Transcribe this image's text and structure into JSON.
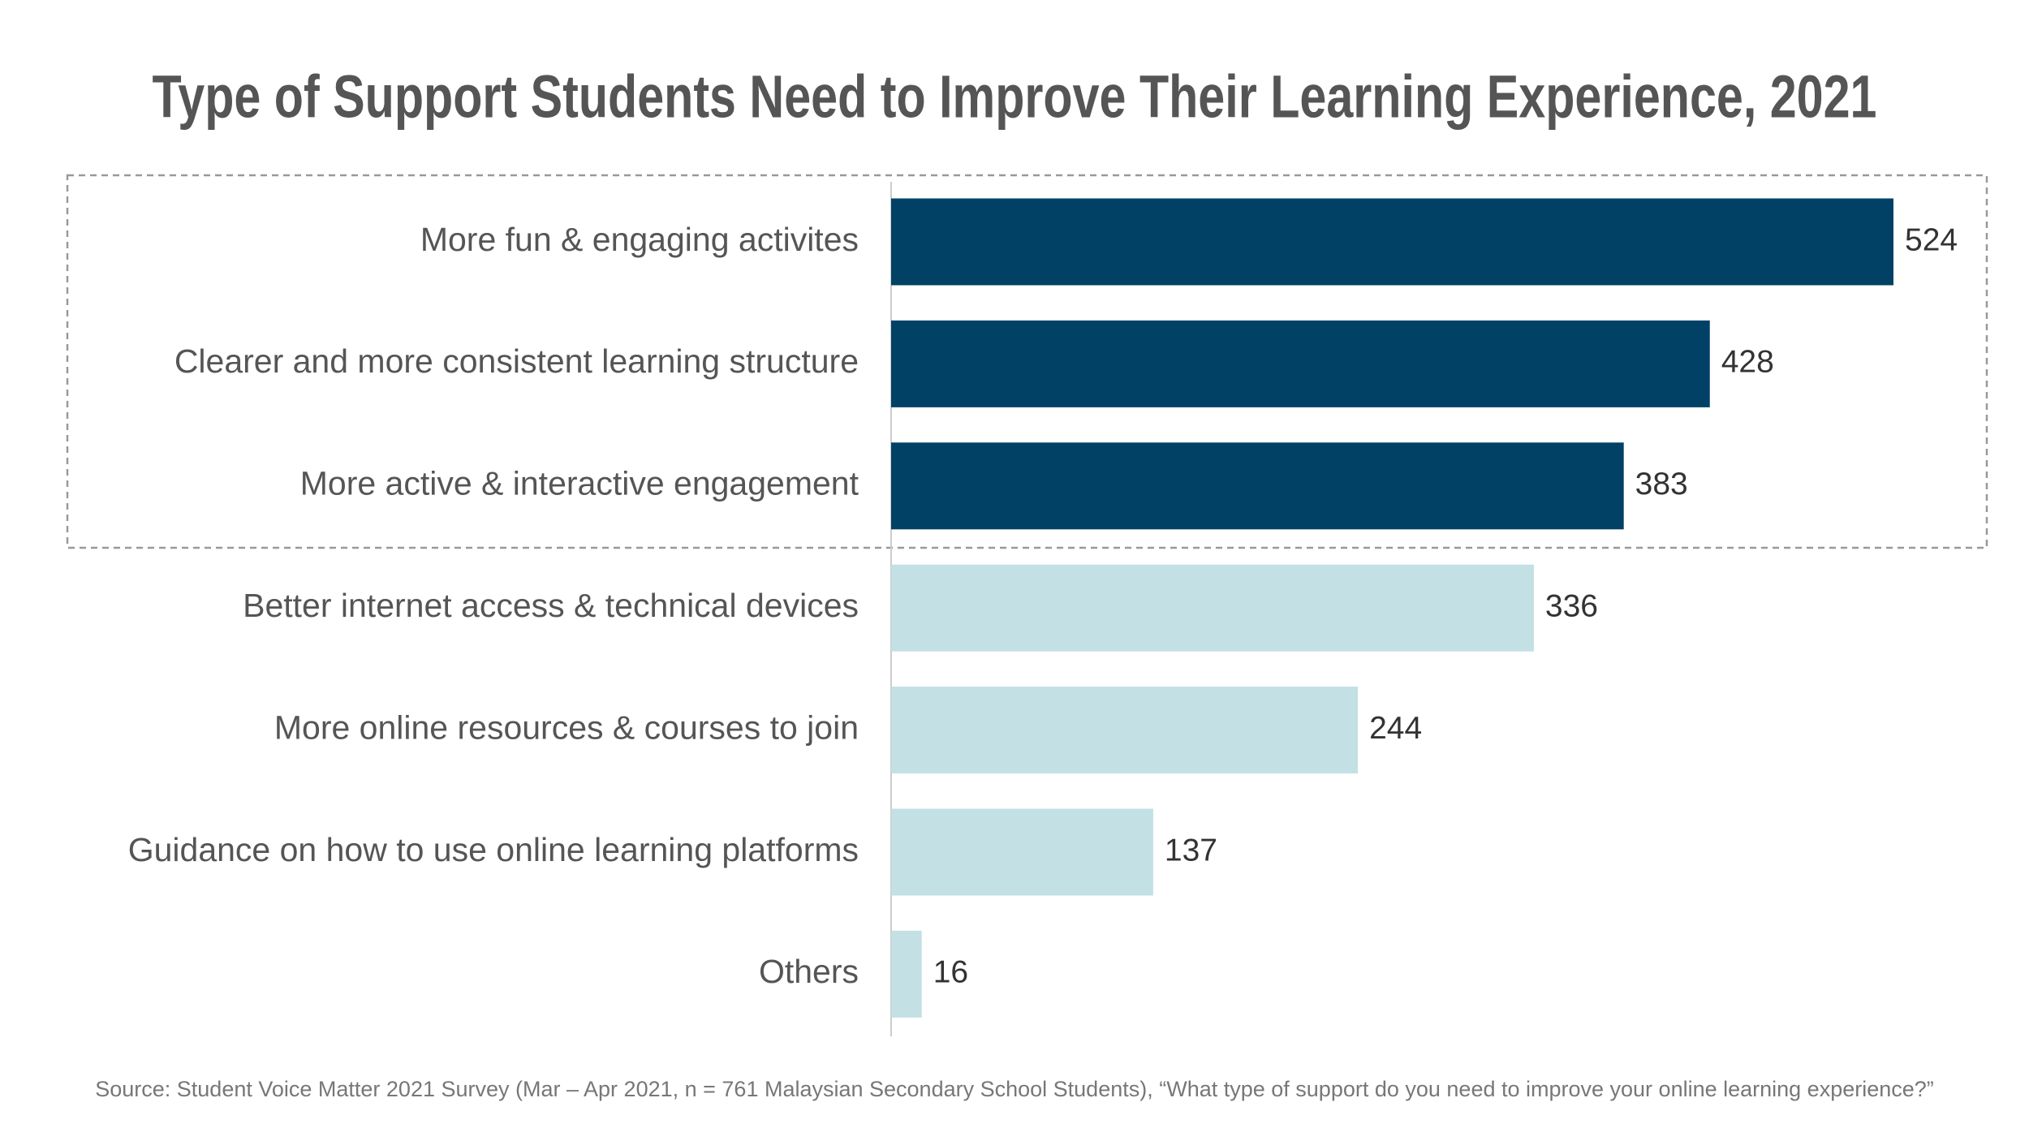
{
  "chart_data": {
    "type": "barh",
    "title": "Type of Support Students Need to Improve Their Learning Experience, 2021",
    "categories": [
      "More fun & engaging activites",
      "Clearer and more consistent learning structure",
      "More active & interactive engagement",
      "Better internet access & technical devices",
      "More online resources & courses to join",
      "Guidance on how to use online learning platforms",
      "Others"
    ],
    "values": [
      524,
      428,
      383,
      336,
      244,
      137,
      16
    ],
    "colors": [
      "#004165",
      "#004165",
      "#004165",
      "#c3e0e4",
      "#c3e0e4",
      "#c3e0e4",
      "#c3e0e4"
    ],
    "source": "Source: Student Voice Matter 2021 Survey (Mar – Apr 2021, n = 761 Malaysian Secondary School Students), “What type of support do you need to improve your online learning experience?”"
  }
}
